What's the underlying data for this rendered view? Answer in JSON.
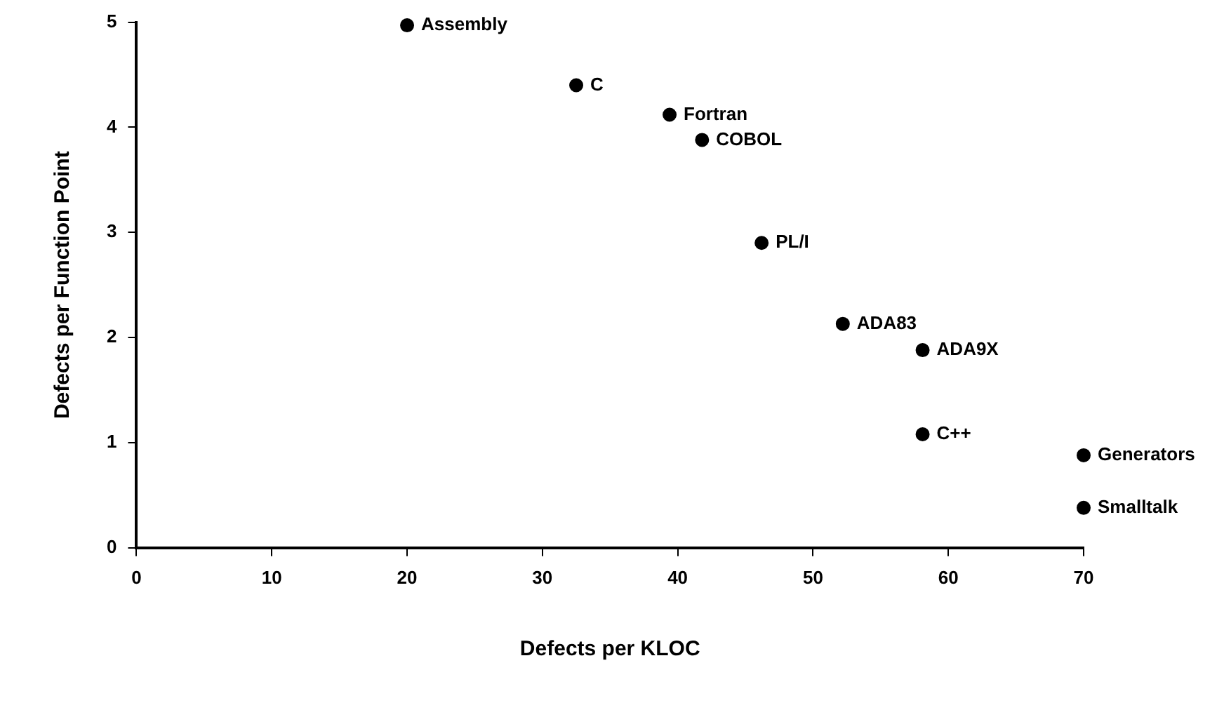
{
  "chart_data": {
    "type": "scatter",
    "xlabel": "Defects per KLOC",
    "ylabel": "Defects per Function Point",
    "x": [
      20,
      32.5,
      39.4,
      41.8,
      46.2,
      52.2,
      58.1,
      58.1,
      70,
      70
    ],
    "values": [
      4.97,
      4.4,
      4.12,
      3.88,
      2.9,
      2.13,
      1.88,
      1.08,
      0.88,
      0.38
    ],
    "color": "#000000",
    "marker": "circle",
    "xlim": [
      0,
      70
    ],
    "xticks": [
      0,
      10,
      20,
      30,
      40,
      50,
      60,
      70
    ],
    "ylim": [
      0,
      5
    ],
    "yticks": [
      0,
      1,
      2,
      3,
      4,
      5
    ],
    "grid": false,
    "legend": false,
    "annotations": [
      {
        "text": "Assembly",
        "x": 20,
        "y": 4.97
      },
      {
        "text": "C",
        "x": 32.5,
        "y": 4.4
      },
      {
        "text": "Fortran",
        "x": 39.4,
        "y": 4.12
      },
      {
        "text": "COBOL",
        "x": 41.8,
        "y": 3.88
      },
      {
        "text": "PL/I",
        "x": 46.2,
        "y": 2.9
      },
      {
        "text": "ADA83",
        "x": 52.2,
        "y": 2.13
      },
      {
        "text": "ADA9X",
        "x": 58.1,
        "y": 1.88
      },
      {
        "text": "C++",
        "x": 58.1,
        "y": 1.08
      },
      {
        "text": "Generators",
        "x": 70,
        "y": 0.88
      },
      {
        "text": "Smalltalk",
        "x": 70,
        "y": 0.38
      }
    ]
  }
}
